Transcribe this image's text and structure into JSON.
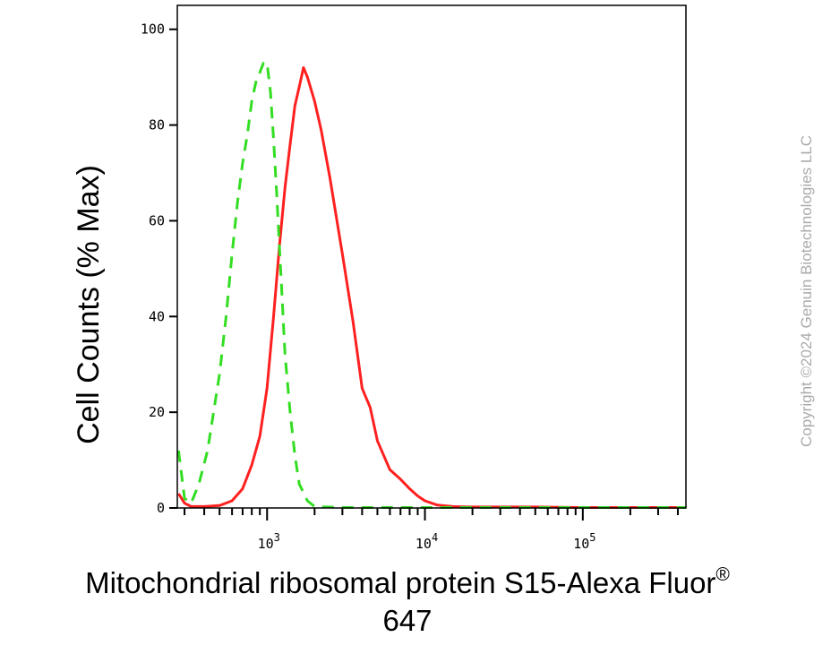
{
  "chart_data": {
    "type": "line",
    "ylabel": "Cell Counts (% Max)",
    "xlabel_main": "Mitochondrial ribosomal protein S15-Alexa Fluor",
    "xlabel_sup": "®",
    "xlabel_line2": "647",
    "watermark": "Copyright ©2024 Genuin Biotechnologies LLC",
    "x_scale": "log",
    "xlim": [
      270,
      450000
    ],
    "ylim": [
      0,
      105
    ],
    "yticks": [
      0,
      20,
      40,
      60,
      80,
      100
    ],
    "xticks_major": [
      {
        "value": 1000,
        "base": "10",
        "exp": "3"
      },
      {
        "value": 10000,
        "base": "10",
        "exp": "4"
      },
      {
        "value": 100000,
        "base": "10",
        "exp": "5"
      }
    ],
    "grid": false,
    "legend": "none",
    "series": [
      {
        "color": "#ff2020",
        "style": "solid",
        "points": [
          [
            275,
            3
          ],
          [
            300,
            1
          ],
          [
            330,
            0.3
          ],
          [
            400,
            0.3
          ],
          [
            500,
            0.5
          ],
          [
            600,
            1.5
          ],
          [
            700,
            4
          ],
          [
            800,
            9
          ],
          [
            900,
            15
          ],
          [
            1000,
            25
          ],
          [
            1100,
            40
          ],
          [
            1200,
            55
          ],
          [
            1300,
            67
          ],
          [
            1400,
            76
          ],
          [
            1500,
            84
          ],
          [
            1600,
            88
          ],
          [
            1700,
            92
          ],
          [
            1800,
            90
          ],
          [
            2000,
            85
          ],
          [
            2200,
            79
          ],
          [
            2500,
            69
          ],
          [
            3000,
            53
          ],
          [
            3500,
            39
          ],
          [
            4000,
            25
          ],
          [
            4500,
            21
          ],
          [
            5000,
            14
          ],
          [
            6000,
            8
          ],
          [
            7000,
            6
          ],
          [
            8000,
            4
          ],
          [
            9000,
            2.5
          ],
          [
            10000,
            1.5
          ],
          [
            12000,
            0.6
          ],
          [
            15000,
            0.3
          ],
          [
            20000,
            0.2
          ],
          [
            50000,
            0.2
          ],
          [
            100000,
            0.1
          ],
          [
            200000,
            0.1
          ],
          [
            450000,
            0.1
          ]
        ]
      },
      {
        "color": "#33dd22",
        "style": "dashed",
        "points": [
          [
            275,
            12
          ],
          [
            300,
            2
          ],
          [
            330,
            1
          ],
          [
            370,
            5
          ],
          [
            420,
            12
          ],
          [
            500,
            28
          ],
          [
            550,
            40
          ],
          [
            600,
            53
          ],
          [
            650,
            64
          ],
          [
            700,
            72
          ],
          [
            750,
            78
          ],
          [
            800,
            85
          ],
          [
            850,
            89
          ],
          [
            900,
            91
          ],
          [
            950,
            93
          ],
          [
            1000,
            93
          ],
          [
            1050,
            87
          ],
          [
            1100,
            77
          ],
          [
            1150,
            66
          ],
          [
            1200,
            54
          ],
          [
            1250,
            43
          ],
          [
            1300,
            32
          ],
          [
            1400,
            20
          ],
          [
            1500,
            11
          ],
          [
            1600,
            5
          ],
          [
            1800,
            1.5
          ],
          [
            2000,
            0.3
          ],
          [
            3000,
            0.1
          ],
          [
            10000,
            0.1
          ],
          [
            100000,
            0.1
          ],
          [
            450000,
            0.1
          ]
        ]
      }
    ]
  }
}
